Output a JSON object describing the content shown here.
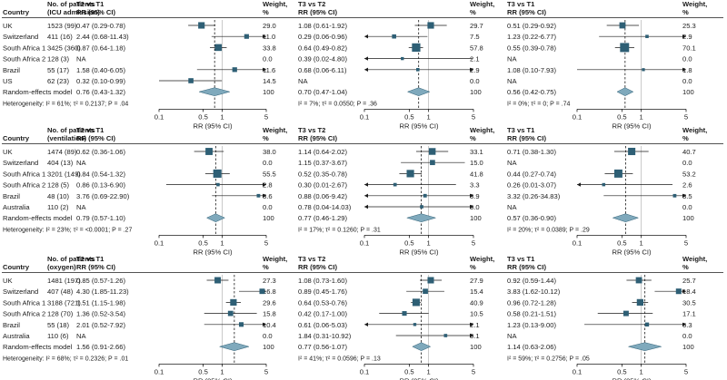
{
  "colors": {
    "square": "#2e5f75",
    "diamond": "#7fa9bc",
    "axis": "#1a1a1a",
    "null_line": "#bdbdbd",
    "text": "#1a1a1a"
  },
  "chart_data": [
    {
      "type": "forest",
      "col_headers": {
        "country": "Country",
        "patients": [
          "No. of patients",
          "(ICU admission)"
        ],
        "t2t1": [
          "T2 vs T1",
          "RR (95% CI)"
        ],
        "t3t2": [
          "T3 vs T2",
          "RR (95% CI)"
        ],
        "t3t1": [
          "T3 vs T1",
          "RR (95% CI)"
        ],
        "weight": [
          "Weight,",
          "%"
        ]
      },
      "rows": [
        {
          "country": "UK",
          "patients": "1523 (99)",
          "t2t1": {
            "text": "0.47 (0.29-0.78)",
            "rr": 0.47,
            "lo": 0.29,
            "hi": 0.78,
            "w": "29.0"
          },
          "t3t2": {
            "text": "1.08 (0.61-1.92)",
            "rr": 1.08,
            "lo": 0.61,
            "hi": 1.92,
            "w": "29.7"
          },
          "t3t1": {
            "text": "0.51 (0.29-0.92)",
            "rr": 0.51,
            "lo": 0.29,
            "hi": 0.92,
            "w": "25.3"
          }
        },
        {
          "country": "Switzerland",
          "patients": "411 (16)",
          "t2t1": {
            "text": "2.44 (0.68-11.43)",
            "rr": 2.44,
            "lo": 0.68,
            "hi": 11.43,
            "w": "11.0"
          },
          "t3t2": {
            "text": "0.29 (0.06-0.96)",
            "rr": 0.29,
            "lo": 0.06,
            "hi": 0.96,
            "w": "7.5"
          },
          "t3t1": {
            "text": "1.23 (0.22-6.77)",
            "rr": 1.23,
            "lo": 0.22,
            "hi": 6.77,
            "w": "2.9"
          }
        },
        {
          "country": "South Africa 1",
          "patients": "3425 (360)",
          "t2t1": {
            "text": "0.87 (0.64-1.18)",
            "rr": 0.87,
            "lo": 0.64,
            "hi": 1.18,
            "w": "33.8"
          },
          "t3t2": {
            "text": "0.64 (0.49-0.82)",
            "rr": 0.64,
            "lo": 0.49,
            "hi": 0.82,
            "w": "57.8"
          },
          "t3t1": {
            "text": "0.55 (0.39-0.78)",
            "rr": 0.55,
            "lo": 0.39,
            "hi": 0.78,
            "w": "70.1"
          }
        },
        {
          "country": "South Africa 2",
          "patients": "128 (3)",
          "t2t1": {
            "text": "NA",
            "rr": null,
            "lo": null,
            "hi": null,
            "w": "0.0"
          },
          "t3t2": {
            "text": "0.39 (0.02-4.80)",
            "rr": 0.39,
            "lo": 0.02,
            "hi": 4.8,
            "w": "2.1"
          },
          "t3t1": {
            "text": "NA",
            "rr": null,
            "lo": null,
            "hi": null,
            "w": "0.0"
          }
        },
        {
          "country": "Brazil",
          "patients": "55 (17)",
          "t2t1": {
            "text": "1.58 (0.40-6.05)",
            "rr": 1.58,
            "lo": 0.4,
            "hi": 6.05,
            "w": "11.6"
          },
          "t3t2": {
            "text": "0.68 (0.06-6.11)",
            "rr": 0.68,
            "lo": 0.06,
            "hi": 6.11,
            "w": "2.9"
          },
          "t3t1": {
            "text": "1.08 (0.10-7.93)",
            "rr": 1.08,
            "lo": 0.1,
            "hi": 7.93,
            "w": "1.8"
          }
        },
        {
          "country": "US",
          "patients": "62 (23)",
          "t2t1": {
            "text": "0.32 (0.10-0.99)",
            "rr": 0.32,
            "lo": 0.1,
            "hi": 0.99,
            "w": "14.5"
          },
          "t3t2": {
            "text": "NA",
            "rr": null,
            "lo": null,
            "hi": null,
            "w": "0.0"
          },
          "t3t1": {
            "text": "NA",
            "rr": null,
            "lo": null,
            "hi": null,
            "w": "0.0"
          }
        }
      ],
      "pooled": {
        "label": "Random-effects model",
        "t2t1": {
          "text": "0.76 (0.43-1.32)",
          "rr": 0.76,
          "lo": 0.43,
          "hi": 1.32,
          "w": "100"
        },
        "t3t2": {
          "text": "0.70 (0.47-1.04)",
          "rr": 0.7,
          "lo": 0.47,
          "hi": 1.04,
          "w": "100"
        },
        "t3t1": {
          "text": "0.56 (0.42-0.75)",
          "rr": 0.56,
          "lo": 0.42,
          "hi": 0.75,
          "w": "100"
        }
      },
      "heterogeneity": {
        "t2t1": "Heterogeneity: I² = 61%; τ² = 0.2137; P = .04",
        "t3t2": "I² = 7%; τ² = 0.0550; P = .36",
        "t3t1": "I² = 0%; τ² = 0; P = .74"
      }
    },
    {
      "type": "forest",
      "col_headers": {
        "country": "Country",
        "patients": [
          "No. of patients",
          "(ventilation)"
        ],
        "t2t1": [
          "T2 vs T1",
          "RR (95% CI)"
        ],
        "t3t2": [
          "T3 vs T2",
          "RR (95% CI)"
        ],
        "t3t1": [
          "T3 vs T1",
          "RR (95% CI)"
        ],
        "weight": [
          "Weight,",
          "%"
        ]
      },
      "rows": [
        {
          "country": "UK",
          "patients": "1474 (89)",
          "t2t1": {
            "text": "0.62 (0.36-1.06)",
            "rr": 0.62,
            "lo": 0.36,
            "hi": 1.06,
            "w": "38.0"
          },
          "t3t2": {
            "text": "1.14 (0.64-2.02)",
            "rr": 1.14,
            "lo": 0.64,
            "hi": 2.02,
            "w": "33.1"
          },
          "t3t1": {
            "text": "0.71 (0.38-1.30)",
            "rr": 0.71,
            "lo": 0.38,
            "hi": 1.3,
            "w": "40.7"
          }
        },
        {
          "country": "Switzerland",
          "patients": "404 (13)",
          "t2t1": {
            "text": "NA",
            "rr": null,
            "lo": null,
            "hi": null,
            "w": "0.0"
          },
          "t3t2": {
            "text": "1.15 (0.37-3.67)",
            "rr": 1.15,
            "lo": 0.37,
            "hi": 3.67,
            "w": "15.0"
          },
          "t3t1": {
            "text": "NA",
            "rr": null,
            "lo": null,
            "hi": null,
            "w": "0.0"
          }
        },
        {
          "country": "South Africa 1",
          "patients": "3201 (149)",
          "t2t1": {
            "text": "0.84 (0.54-1.32)",
            "rr": 0.84,
            "lo": 0.54,
            "hi": 1.32,
            "w": "55.5"
          },
          "t3t2": {
            "text": "0.52 (0.35-0.78)",
            "rr": 0.52,
            "lo": 0.35,
            "hi": 0.78,
            "w": "41.8"
          },
          "t3t1": {
            "text": "0.44 (0.27-0.74)",
            "rr": 0.44,
            "lo": 0.27,
            "hi": 0.74,
            "w": "53.2"
          }
        },
        {
          "country": "South Africa 2",
          "patients": "128 (5)",
          "t2t1": {
            "text": "0.86 (0.13-6.90)",
            "rr": 0.86,
            "lo": 0.13,
            "hi": 6.9,
            "w": "2.8"
          },
          "t3t2": {
            "text": "0.30 (0.01-2.67)",
            "rr": 0.3,
            "lo": 0.01,
            "hi": 2.67,
            "w": "3.3"
          },
          "t3t1": {
            "text": "0.26 (0.01-3.07)",
            "rr": 0.26,
            "lo": 0.01,
            "hi": 3.07,
            "w": "2.6"
          }
        },
        {
          "country": "Brazil",
          "patients": "48 (10)",
          "t2t1": {
            "text": "3.76 (0.69-22.90)",
            "rr": 3.76,
            "lo": 0.69,
            "hi": 22.9,
            "w": "3.6"
          },
          "t3t2": {
            "text": "0.88 (0.06-9.42)",
            "rr": 0.88,
            "lo": 0.06,
            "hi": 9.42,
            "w": "3.9"
          },
          "t3t1": {
            "text": "3.32 (0.26-34.83)",
            "rr": 3.32,
            "lo": 0.26,
            "hi": 34.83,
            "w": "3.5"
          }
        },
        {
          "country": "Australia",
          "patients": "110 (2)",
          "t2t1": {
            "text": "NA",
            "rr": null,
            "lo": null,
            "hi": null,
            "w": "0.0"
          },
          "t3t2": {
            "text": "0.78 (0.04-14.03)",
            "rr": 0.78,
            "lo": 0.04,
            "hi": 14.03,
            "w": "3.0"
          },
          "t3t1": {
            "text": "NA",
            "rr": null,
            "lo": null,
            "hi": null,
            "w": "0.0"
          }
        }
      ],
      "pooled": {
        "label": "Random-effects model",
        "t2t1": {
          "text": "0.79 (0.57-1.10)",
          "rr": 0.79,
          "lo": 0.57,
          "hi": 1.1,
          "w": "100"
        },
        "t3t2": {
          "text": "0.77 (0.46-1.29)",
          "rr": 0.77,
          "lo": 0.46,
          "hi": 1.29,
          "w": "100"
        },
        "t3t1": {
          "text": "0.57 (0.36-0.90)",
          "rr": 0.57,
          "lo": 0.36,
          "hi": 0.9,
          "w": "100"
        }
      },
      "heterogeneity": {
        "t2t1": "Heterogeneity: I² = 23%; τ² = <0.0001; P = .27",
        "t3t2": "I² = 17%; τ² = 0.1260; P = .31",
        "t3t1": "I² = 20%; τ² = 0.0389; P = .29"
      }
    },
    {
      "type": "forest",
      "col_headers": {
        "country": "Country",
        "patients": [
          "No. of patients",
          "(oxygen)"
        ],
        "t2t1": [
          "T2 vs T1",
          "RR (95% CI)"
        ],
        "t3t2": [
          "T3 vs T2",
          "RR (95% CI)"
        ],
        "t3t1": [
          "T3 vs T1",
          "RR (95% CI)"
        ],
        "weight": [
          "Weight,",
          "%"
        ]
      },
      "rows": [
        {
          "country": "UK",
          "patients": "1481 (197)",
          "t2t1": {
            "text": "0.85 (0.57-1.26)",
            "rr": 0.85,
            "lo": 0.57,
            "hi": 1.26,
            "w": "27.3"
          },
          "t3t2": {
            "text": "1.08 (0.73-1.60)",
            "rr": 1.08,
            "lo": 0.73,
            "hi": 1.6,
            "w": "27.9"
          },
          "t3t1": {
            "text": "0.92 (0.59-1.44)",
            "rr": 0.92,
            "lo": 0.59,
            "hi": 1.44,
            "w": "25.7"
          }
        },
        {
          "country": "Switzerland",
          "patients": "407 (48)",
          "t2t1": {
            "text": "4.30 (1.85-11.23)",
            "rr": 4.3,
            "lo": 1.85,
            "hi": 11.23,
            "w": "16.8"
          },
          "t3t2": {
            "text": "0.89 (0.45-1.76)",
            "rr": 0.89,
            "lo": 0.45,
            "hi": 1.76,
            "w": "15.4"
          },
          "t3t1": {
            "text": "3.83 (1.62-10.12)",
            "rr": 3.83,
            "lo": 1.62,
            "hi": 10.12,
            "w": "18.4"
          }
        },
        {
          "country": "South Africa 1",
          "patients": "3188 (721)",
          "t2t1": {
            "text": "1.51 (1.15-1.98)",
            "rr": 1.51,
            "lo": 1.15,
            "hi": 1.98,
            "w": "29.6"
          },
          "t3t2": {
            "text": "0.64 (0.53-0.76)",
            "rr": 0.64,
            "lo": 0.53,
            "hi": 0.76,
            "w": "40.9"
          },
          "t3t1": {
            "text": "0.96 (0.72-1.28)",
            "rr": 0.96,
            "lo": 0.72,
            "hi": 1.28,
            "w": "30.5"
          }
        },
        {
          "country": "South Africa 2",
          "patients": "128 (70)",
          "t2t1": {
            "text": "1.36 (0.52-3.54)",
            "rr": 1.36,
            "lo": 0.52,
            "hi": 3.54,
            "w": "15.8"
          },
          "t3t2": {
            "text": "0.42 (0.17-1.00)",
            "rr": 0.42,
            "lo": 0.17,
            "hi": 1.0,
            "w": "10.5"
          },
          "t3t1": {
            "text": "0.58 (0.21-1.51)",
            "rr": 0.58,
            "lo": 0.21,
            "hi": 1.51,
            "w": "17.1"
          }
        },
        {
          "country": "Brazil",
          "patients": "55 (18)",
          "t2t1": {
            "text": "2.01 (0.52-7.92)",
            "rr": 2.01,
            "lo": 0.52,
            "hi": 7.92,
            "w": "10.4"
          },
          "t3t2": {
            "text": "0.61 (0.06-5.03)",
            "rr": 0.61,
            "lo": 0.06,
            "hi": 5.03,
            "w": "2.1"
          },
          "t3t1": {
            "text": "1.23 (0.13-9.00)",
            "rr": 1.23,
            "lo": 0.13,
            "hi": 9.0,
            "w": "6.3"
          }
        },
        {
          "country": "Australia",
          "patients": "110 (6)",
          "t2t1": {
            "text": "NA",
            "rr": null,
            "lo": null,
            "hi": null,
            "w": "0.0"
          },
          "t3t2": {
            "text": "1.84 (0.31-10.92)",
            "rr": 1.84,
            "lo": 0.31,
            "hi": 10.92,
            "w": "3.1"
          },
          "t3t1": {
            "text": "NA",
            "rr": null,
            "lo": null,
            "hi": null,
            "w": "0.0"
          }
        }
      ],
      "pooled": {
        "label": "Random-effects model",
        "t2t1": {
          "text": "1.56 (0.91-2.66)",
          "rr": 1.56,
          "lo": 0.91,
          "hi": 2.66,
          "w": "100"
        },
        "t3t2": {
          "text": "0.77 (0.56-1.07)",
          "rr": 0.77,
          "lo": 0.56,
          "hi": 1.07,
          "w": "100"
        },
        "t3t1": {
          "text": "1.14 (0.63-2.06)",
          "rr": 1.14,
          "lo": 0.63,
          "hi": 2.06,
          "w": "100"
        }
      },
      "heterogeneity": {
        "t2t1": "Heterogeneity: I² = 68%; τ² = 0.2326; P = .01",
        "t3t2": "I² = 41%; τ² = 0.0596; P = .13",
        "t3t1": "I² = 59%; τ² = 0.2756; P = .05"
      }
    }
  ],
  "axis": {
    "scale": "log",
    "xlim": [
      0.1,
      5
    ],
    "ticks": [
      0.1,
      0.5,
      1,
      5
    ],
    "tick_labels": [
      "0.1",
      "0.5",
      "1",
      "5"
    ],
    "xlabel": "RR (95% CI)"
  }
}
